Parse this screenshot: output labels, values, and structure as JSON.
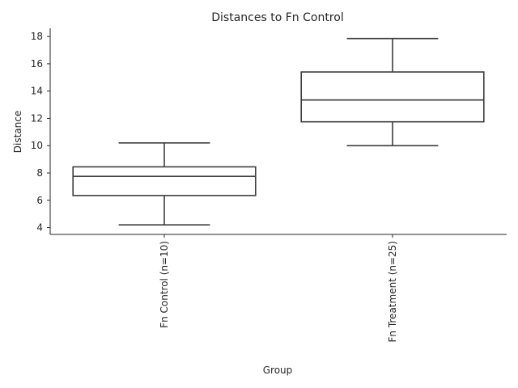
{
  "chart_data": {
    "type": "box",
    "title": "Distances to Fn Control",
    "xlabel": "Group",
    "ylabel": "Distance",
    "ylim": [
      3.5,
      18.6
    ],
    "yticks": [
      4,
      6,
      8,
      10,
      12,
      14,
      16,
      18
    ],
    "grid": false,
    "categories": [
      "Fn Control (n=10)",
      "Fn Treatment (n=25)"
    ],
    "boxes": [
      {
        "category": "Fn Control (n=10)",
        "whisker_low": 4.2,
        "q1": 6.35,
        "median": 7.75,
        "q3": 8.45,
        "whisker_high": 10.2
      },
      {
        "category": "Fn Treatment (n=25)",
        "whisker_low": 10.0,
        "q1": 11.75,
        "median": 13.35,
        "q3": 15.4,
        "whisker_high": 17.85
      }
    ]
  }
}
